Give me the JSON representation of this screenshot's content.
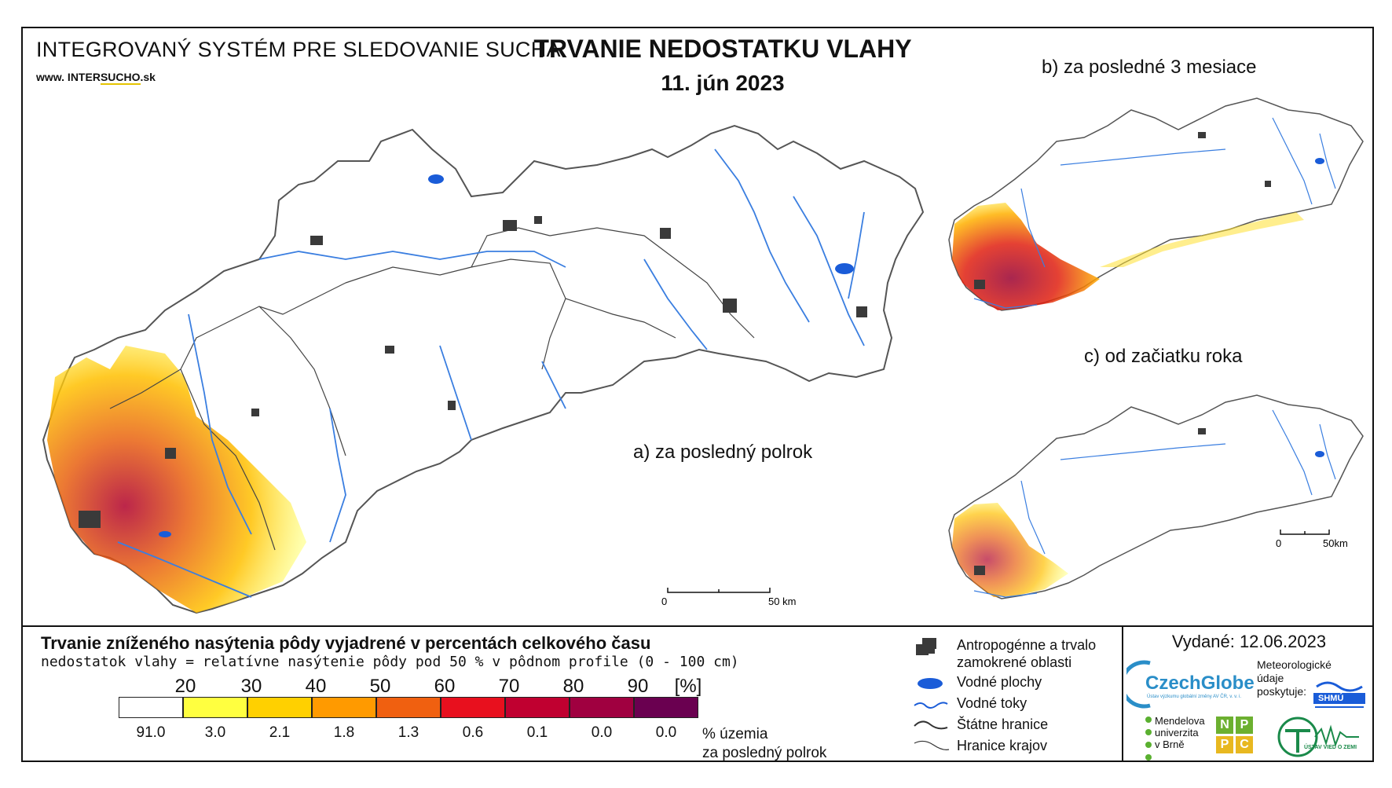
{
  "header": {
    "system_title": "INTEGROVANÝ SYSTÉM PRE SLEDOVANIE SUCHA",
    "website_prefix": "www. INTER",
    "website_underlined": "SUCHO",
    "website_suffix": ".sk",
    "main_title": "TRVANIE NEDOSTATKU VLAHY",
    "date": "11. jún 2023"
  },
  "maps": {
    "a_label": "a) za posledný polrok",
    "b_label": "b) za posledné 3 mesiace",
    "c_label": "c) od začiatku roka",
    "scale_main": {
      "zero": "0",
      "end": "50 km"
    },
    "scale_small": {
      "zero": "0",
      "end": "50km"
    }
  },
  "legend": {
    "title": "Trvanie zníženého nasýtenia pôdy vyjadrené v percentách celkového času",
    "subtitle": "nedostatok vlahy = relatívne nasýtenie pôdy pod 50 % v pôdnom profile (0 - 100 cm)",
    "ticks": [
      "20",
      "30",
      "40",
      "50",
      "60",
      "70",
      "80",
      "90",
      "[%]"
    ],
    "colors": [
      "#ffffff",
      "#ffff40",
      "#ffd000",
      "#ff9a00",
      "#f06010",
      "#e8101e",
      "#c00030",
      "#a00040",
      "#6a0050"
    ],
    "percentages": [
      "91.0",
      "3.0",
      "2.1",
      "1.8",
      "1.3",
      "0.6",
      "0.1",
      "0.0",
      "0.0"
    ],
    "pct_unit_line1": "% územia",
    "pct_unit_line2": "za posledný polrok"
  },
  "symbols": {
    "anthropogenic_line1": "Antropogénne a trvalo",
    "anthropogenic_line2": "zamokrené oblasti",
    "water_bodies": "Vodné plochy",
    "water_courses": "Vodné toky",
    "state_border": "Štátne hranice",
    "region_border": "Hranice krajov",
    "colors": {
      "anthropogenic": "#3a3a3a",
      "water": "#1a5cd8",
      "border": "#333333"
    }
  },
  "credits": {
    "issued": "Vydané: 12.06.2023",
    "czechglobe": "CzechGlobe",
    "czechglobe_small": "Ústav výzkumu globální změny AV ČR, v. v. i.",
    "meteo_line1": "Meteorologické",
    "meteo_line2": "údaje",
    "meteo_line3": "poskytuje:",
    "mendel_line1": "Mendelova",
    "mendel_line2": "univerzita",
    "mendel_line3": "v Brně",
    "npp_letters": [
      "N",
      "P",
      "P",
      "C"
    ],
    "uvz_text": "ÚSTAV VIED O ZEMI",
    "shmu_text": "SHMÚ"
  }
}
